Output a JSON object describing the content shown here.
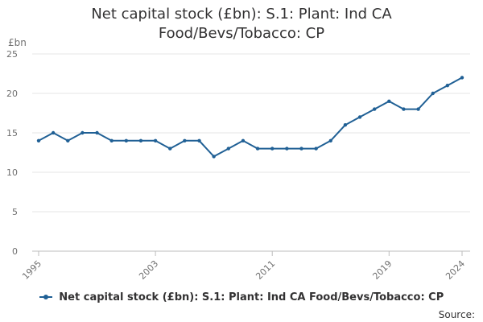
{
  "chart_data": {
    "type": "line",
    "title_line1": "Net capital stock (£bn): S.1: Plant: Ind CA",
    "title_line2": "Food/Bevs/Tobacco: CP",
    "unit_label": "£bn",
    "x": [
      1995,
      1996,
      1997,
      1998,
      1999,
      2000,
      2001,
      2002,
      2003,
      2004,
      2005,
      2006,
      2007,
      2008,
      2009,
      2010,
      2011,
      2012,
      2013,
      2014,
      2015,
      2016,
      2017,
      2018,
      2019,
      2020,
      2021,
      2022,
      2023,
      2024
    ],
    "series": [
      {
        "name": "Net capital stock (£bn): S.1: Plant: Ind CA Food/Bevs/Tobacco: CP",
        "values": [
          14,
          15,
          14,
          15,
          15,
          14,
          14,
          14,
          14,
          13,
          14,
          14,
          12,
          13,
          14,
          13,
          13,
          13,
          13,
          13,
          14,
          16,
          17,
          18,
          19,
          18,
          18,
          20,
          21,
          22
        ],
        "color": "#206095"
      }
    ],
    "x_tick_labels": [
      "1995",
      "2003",
      "2011",
      "2019",
      "2024"
    ],
    "x_tick_values": [
      1995,
      2003,
      2011,
      2019,
      2024
    ],
    "y_ticks": [
      0,
      5,
      10,
      15,
      20,
      25
    ],
    "ylim": [
      0,
      25
    ],
    "xlim": [
      1995,
      2024
    ],
    "grid": "horizontal",
    "legend_position": "bottom"
  },
  "source_label": "Source:"
}
